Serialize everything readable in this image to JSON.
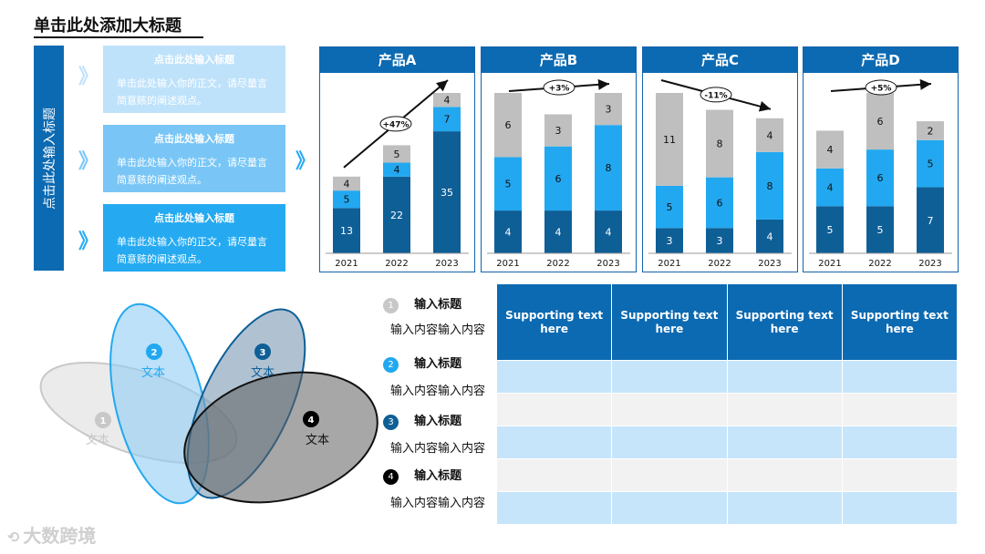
{
  "page": {
    "title": "单击此处添加大标题"
  },
  "left_panel": {
    "vertical_title": "点击此处输入标题",
    "chevron": "》",
    "boxes": [
      {
        "heading": "点击此处输入标题",
        "body": "单击此处输入你的正文，请尽量言简意赅的阐述观点。",
        "color": "#bfe2fb"
      },
      {
        "heading": "点击此处输入标题",
        "body": "单击此处输入你的正文，请尽量言简意赅的阐述观点。",
        "color": "#79c6f6"
      },
      {
        "heading": "点击此处输入标题",
        "body": "单击此处输入你的正文，请尽量言简意赅的阐述观点。",
        "color": "#25aaf1"
      }
    ]
  },
  "colors": {
    "primary": "#0c6ab2",
    "dark": "#0f5f97",
    "light_blue": "#22a8f0",
    "gray": "#bfbfbf",
    "row_blue": "#c6e5fb",
    "row_gray": "#f2f2f2"
  },
  "chart_data": [
    {
      "type": "bar",
      "stacked": true,
      "title": "产品A",
      "categories": [
        "2021",
        "2022",
        "2023"
      ],
      "series": [
        {
          "values": [
            13,
            22,
            35
          ]
        },
        {
          "values": [
            5,
            4,
            7
          ]
        },
        {
          "values": [
            4,
            5,
            4
          ]
        }
      ],
      "annotation": "+47%",
      "arrow": "up-steep"
    },
    {
      "type": "bar",
      "stacked": true,
      "title": "产品B",
      "categories": [
        "2021",
        "2022",
        "2023"
      ],
      "series": [
        {
          "values": [
            4,
            4,
            4
          ]
        },
        {
          "values": [
            5,
            6,
            8
          ]
        },
        {
          "values": [
            6,
            3,
            3
          ]
        }
      ],
      "annotation": "+3%",
      "arrow": "up-slight"
    },
    {
      "type": "bar",
      "stacked": true,
      "title": "产品C",
      "categories": [
        "2021",
        "2022",
        "2023"
      ],
      "series": [
        {
          "values": [
            3,
            3,
            4
          ]
        },
        {
          "values": [
            5,
            6,
            8
          ]
        },
        {
          "values": [
            11,
            8,
            4
          ]
        }
      ],
      "annotation": "-11%",
      "arrow": "down"
    },
    {
      "type": "bar",
      "stacked": true,
      "title": "产品D",
      "categories": [
        "2021",
        "2022",
        "2023"
      ],
      "series": [
        {
          "values": [
            5,
            5,
            7
          ]
        },
        {
          "values": [
            4,
            6,
            5
          ]
        },
        {
          "values": [
            4,
            6,
            2
          ]
        }
      ],
      "annotation": "+5%",
      "arrow": "up-slight"
    }
  ],
  "venn": {
    "items": [
      {
        "num": "1",
        "label": "文本"
      },
      {
        "num": "2",
        "label": "文本"
      },
      {
        "num": "3",
        "label": "文本"
      },
      {
        "num": "4",
        "label": "文本"
      }
    ]
  },
  "legend": [
    {
      "num": "1",
      "title": "输入标题",
      "text": "输入内容输入内容",
      "color": "#c8c8c8"
    },
    {
      "num": "2",
      "title": "输入标题",
      "text": "输入内容输入内容",
      "color": "#22a8f0"
    },
    {
      "num": "3",
      "title": "输入标题",
      "text": "输入内容输入内容",
      "color": "#0f5f97"
    },
    {
      "num": "4",
      "title": "输入标题",
      "text": "输入内容输入内容",
      "color": "#000000"
    }
  ],
  "table": {
    "headers": [
      "Supporting text here",
      "Supporting text here",
      "Supporting text here",
      "Supporting text here"
    ],
    "rows": [
      [
        "",
        "",
        "",
        ""
      ],
      [
        "",
        "",
        "",
        ""
      ],
      [
        "",
        "",
        "",
        ""
      ],
      [
        "",
        "",
        "",
        ""
      ],
      [
        "",
        "",
        "",
        ""
      ]
    ]
  },
  "logo": {
    "text": "大数跨境"
  }
}
